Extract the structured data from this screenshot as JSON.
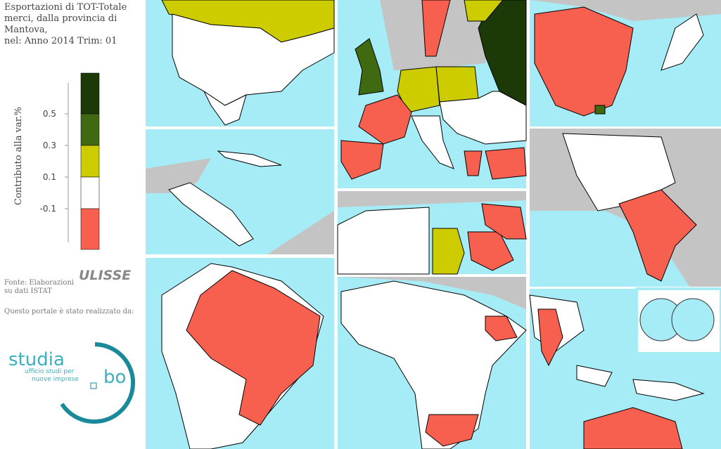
{
  "header": {
    "title_lines": [
      "Esportazioni di TOT-Totale",
      "merci, dalla provincia di",
      "Mantova,",
      "nel: Anno 2014 Trim: 01"
    ]
  },
  "legend": {
    "axis_label": "Contributo alla var.%",
    "ticks": [
      0.5,
      0.3,
      0.1,
      -0.1
    ],
    "colors": [
      "#1c3a08",
      "#3f6a12",
      "#cccc00",
      "#ffffff",
      "#f7604f"
    ]
  },
  "source": {
    "lines": [
      "Fonte: Elaborazioni",
      "su dati ISTAT"
    ],
    "logo": "ULISSE"
  },
  "credits": {
    "text": "Questo portale è stato realizzato da:",
    "logo_left": "studia",
    "logo_right": "bo",
    "tagline": [
      "ufficio studi per",
      "nuove imprese"
    ]
  }
}
